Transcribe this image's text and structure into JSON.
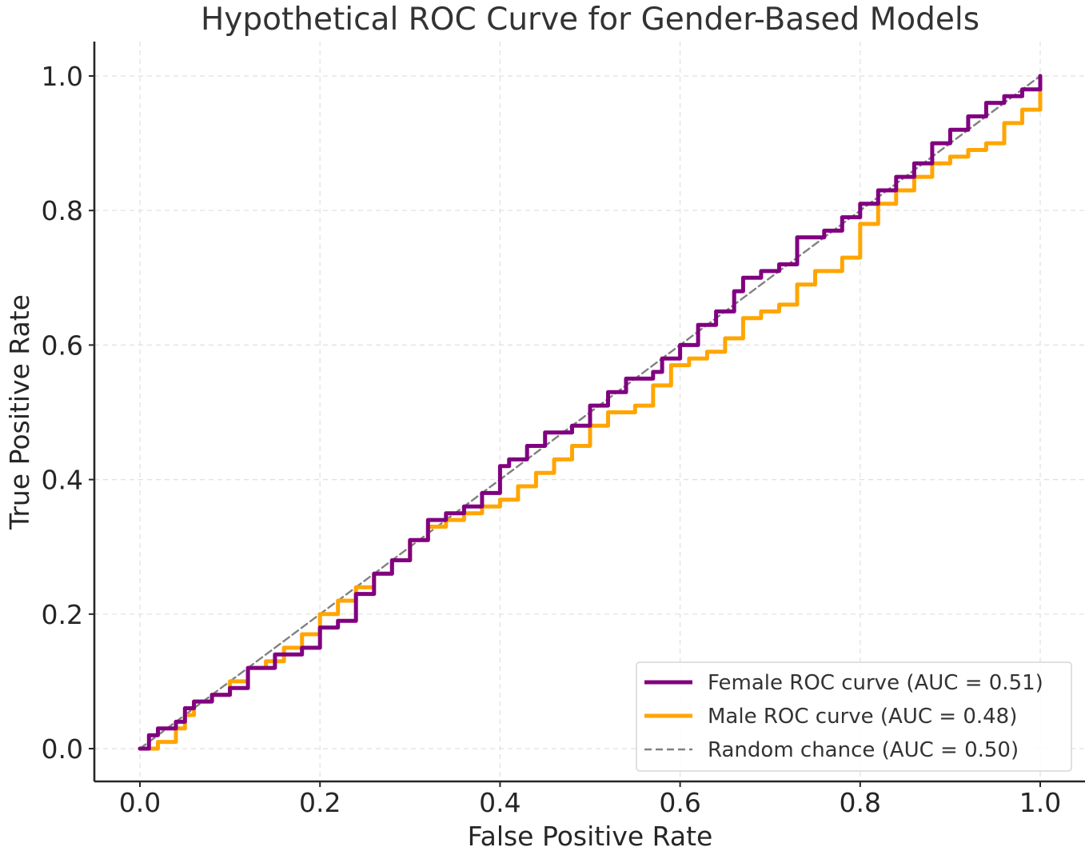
{
  "chart_data": {
    "type": "line",
    "title": "Hypothetical ROC Curve for Gender-Based Models",
    "xlabel": "False Positive Rate",
    "ylabel": "True Positive Rate",
    "xlim": [
      -0.05,
      1.05
    ],
    "ylim": [
      -0.05,
      1.05
    ],
    "xticks": [
      "0.0",
      "0.2",
      "0.4",
      "0.6",
      "0.8",
      "1.0"
    ],
    "yticks": [
      "0.0",
      "0.2",
      "0.4",
      "0.6",
      "0.8",
      "1.0"
    ],
    "xtick_values": [
      0.0,
      0.2,
      0.4,
      0.6,
      0.8,
      1.0
    ],
    "ytick_values": [
      0.0,
      0.2,
      0.4,
      0.6,
      0.8,
      1.0
    ],
    "grid": true,
    "legend_position": "lower-right",
    "series": [
      {
        "name": "Female ROC curve (AUC = 0.51)",
        "color": "#800080",
        "style": "solid",
        "x": [
          0.0,
          0.01,
          0.02,
          0.03,
          0.04,
          0.05,
          0.06,
          0.08,
          0.1,
          0.12,
          0.15,
          0.18,
          0.2,
          0.22,
          0.24,
          0.26,
          0.28,
          0.3,
          0.32,
          0.34,
          0.36,
          0.38,
          0.4,
          0.41,
          0.43,
          0.45,
          0.48,
          0.5,
          0.52,
          0.54,
          0.57,
          0.58,
          0.6,
          0.62,
          0.64,
          0.66,
          0.67,
          0.69,
          0.71,
          0.73,
          0.76,
          0.78,
          0.8,
          0.82,
          0.84,
          0.86,
          0.88,
          0.9,
          0.92,
          0.94,
          0.96,
          0.98,
          1.0
        ],
        "y": [
          0.0,
          0.02,
          0.03,
          0.03,
          0.04,
          0.06,
          0.07,
          0.08,
          0.09,
          0.12,
          0.14,
          0.15,
          0.18,
          0.19,
          0.23,
          0.26,
          0.28,
          0.31,
          0.34,
          0.35,
          0.36,
          0.38,
          0.42,
          0.43,
          0.45,
          0.47,
          0.48,
          0.51,
          0.53,
          0.55,
          0.56,
          0.58,
          0.6,
          0.63,
          0.65,
          0.68,
          0.7,
          0.71,
          0.72,
          0.76,
          0.77,
          0.79,
          0.81,
          0.83,
          0.85,
          0.87,
          0.9,
          0.92,
          0.94,
          0.96,
          0.97,
          0.98,
          1.0
        ]
      },
      {
        "name": "Male ROC curve (AUC = 0.48)",
        "color": "#FFA500",
        "style": "solid",
        "x": [
          0.0,
          0.02,
          0.04,
          0.05,
          0.06,
          0.08,
          0.1,
          0.12,
          0.14,
          0.16,
          0.18,
          0.2,
          0.22,
          0.24,
          0.26,
          0.28,
          0.3,
          0.32,
          0.34,
          0.36,
          0.38,
          0.4,
          0.42,
          0.44,
          0.46,
          0.48,
          0.5,
          0.52,
          0.55,
          0.57,
          0.59,
          0.61,
          0.63,
          0.65,
          0.67,
          0.69,
          0.71,
          0.73,
          0.75,
          0.78,
          0.8,
          0.82,
          0.84,
          0.86,
          0.88,
          0.9,
          0.92,
          0.94,
          0.96,
          0.98,
          1.0
        ],
        "y": [
          0.0,
          0.01,
          0.03,
          0.05,
          0.07,
          0.08,
          0.1,
          0.12,
          0.13,
          0.15,
          0.17,
          0.2,
          0.22,
          0.24,
          0.26,
          0.28,
          0.31,
          0.33,
          0.34,
          0.35,
          0.36,
          0.37,
          0.39,
          0.41,
          0.43,
          0.45,
          0.48,
          0.5,
          0.51,
          0.54,
          0.57,
          0.58,
          0.59,
          0.61,
          0.64,
          0.65,
          0.66,
          0.69,
          0.71,
          0.73,
          0.78,
          0.81,
          0.83,
          0.85,
          0.87,
          0.88,
          0.89,
          0.9,
          0.93,
          0.95,
          1.0
        ]
      },
      {
        "name": "Random chance (AUC = 0.50)",
        "color": "#808080",
        "style": "dashed",
        "x": [
          0.0,
          1.0
        ],
        "y": [
          0.0,
          1.0
        ]
      }
    ]
  }
}
